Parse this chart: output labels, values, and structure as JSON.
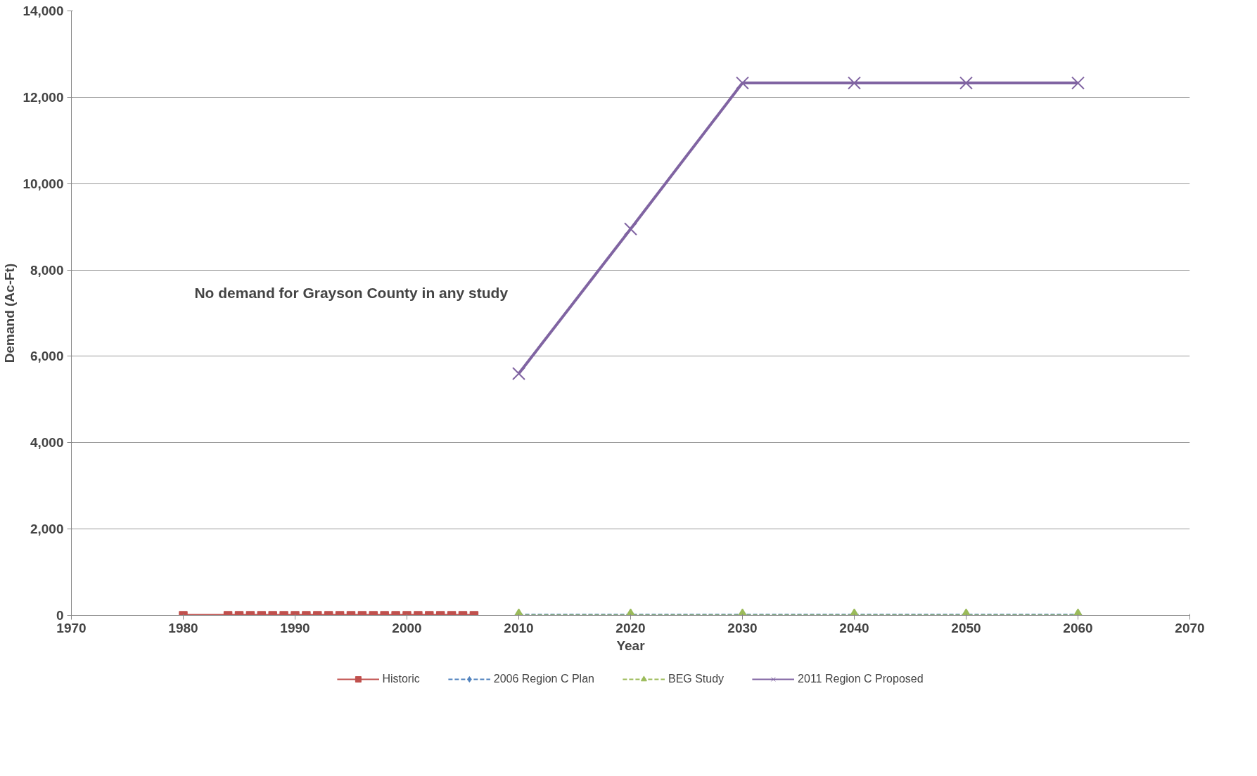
{
  "chart_data": {
    "type": "line",
    "xlabel": "Year",
    "ylabel": "Demand (Ac-Ft)",
    "annotations": [
      "No demand for Grayson County in any study"
    ],
    "xlim": [
      1970,
      2070
    ],
    "ylim": [
      0,
      14000
    ],
    "xticks": [
      1970,
      1980,
      1990,
      2000,
      2010,
      2020,
      2030,
      2040,
      2050,
      2060,
      2070
    ],
    "yticks": [
      0,
      {
        "value": 2000,
        "label": "2,000"
      },
      {
        "value": 4000,
        "label": "4,000"
      },
      {
        "value": 6000,
        "label": "6,000"
      },
      {
        "value": 8000,
        "label": "8,000"
      },
      {
        "value": 10000,
        "label": "10,000"
      },
      {
        "value": 12000,
        "label": "12,000"
      },
      {
        "value": 14000,
        "label": "14,000"
      }
    ],
    "grid": "y",
    "legend": "bottom",
    "series": [
      {
        "name": "Historic",
        "color": "#c0504d",
        "marker": "square",
        "line_style": "solid",
        "x": [
          1980,
          1984,
          1985,
          1986,
          1987,
          1988,
          1989,
          1990,
          1991,
          1992,
          1993,
          1994,
          1995,
          1996,
          1997,
          1998,
          1999,
          2000,
          2001,
          2002,
          2003,
          2004,
          2005,
          2006
        ],
        "values": [
          0,
          0,
          0,
          0,
          0,
          0,
          0,
          0,
          0,
          0,
          0,
          0,
          0,
          0,
          0,
          0,
          0,
          0,
          0,
          0,
          0,
          0,
          0,
          0
        ]
      },
      {
        "name": "2006 Region C Plan",
        "color": "#4f81bd",
        "marker": "diamond",
        "line_style": "dashed",
        "x": [
          2010,
          2020,
          2030,
          2040,
          2050,
          2060
        ],
        "values": [
          0,
          0,
          0,
          0,
          0,
          0
        ]
      },
      {
        "name": "BEG Study",
        "color": "#9bbb59",
        "marker": "triangle",
        "line_style": "dashed",
        "x": [
          2010,
          2020,
          2030,
          2040,
          2050,
          2060
        ],
        "values": [
          0,
          0,
          0,
          0,
          0,
          0
        ]
      },
      {
        "name": "2011 Region C Proposed",
        "color": "#8064a2",
        "marker": "cross",
        "line_style": "solid",
        "x": [
          2010,
          2020,
          2030,
          2040,
          2050,
          2060
        ],
        "values": [
          5600,
          8950,
          12330,
          12330,
          12330,
          12330
        ]
      }
    ]
  }
}
